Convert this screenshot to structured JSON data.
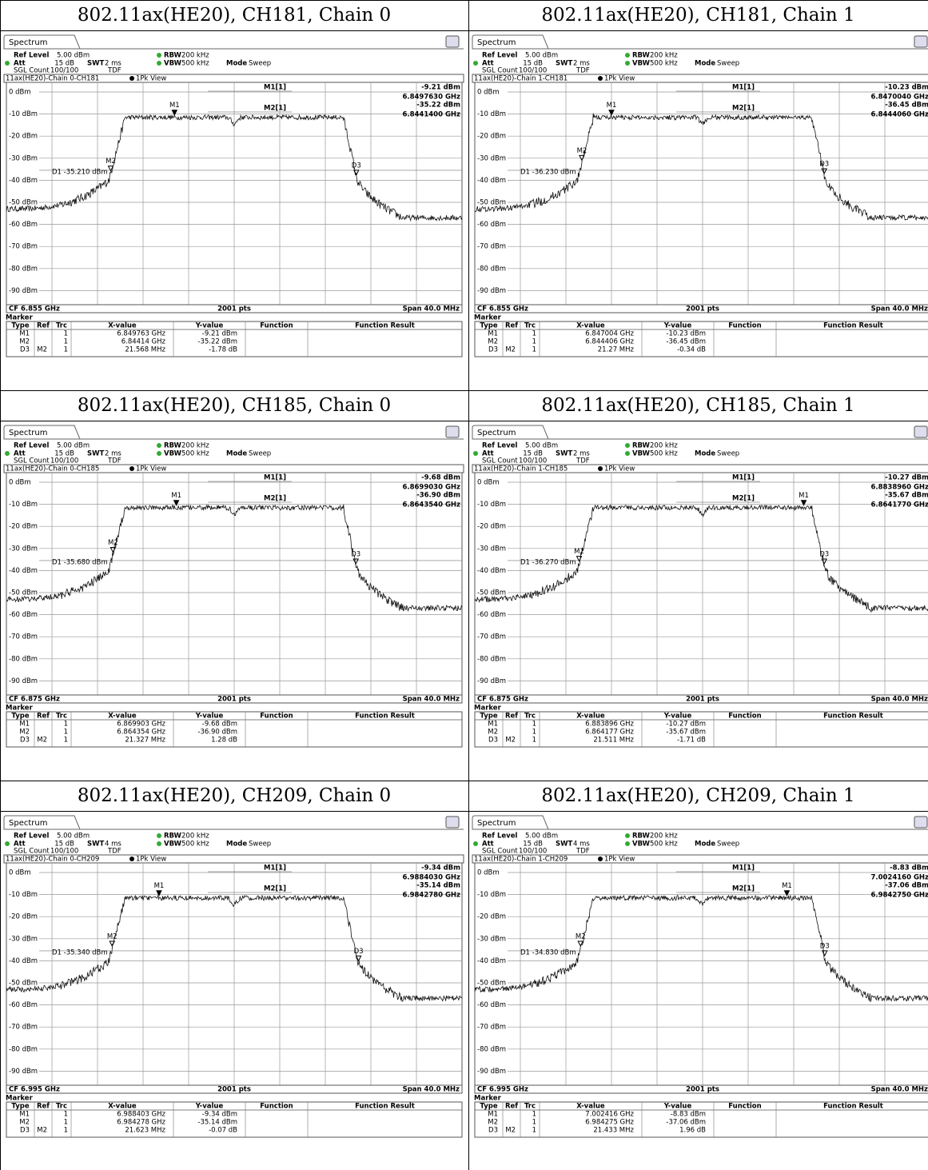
{
  "common": {
    "tab": "Spectrum",
    "ref_level_label": "Ref Level",
    "ref_level": "5.00 dBm",
    "att_label": "Att",
    "att": "15 dB",
    "swt_label": "SWT",
    "rbw_label": "RBW",
    "rbw": "200 kHz",
    "vbw_label": "VBW",
    "vbw": "500 kHz",
    "mode_label": "Mode",
    "mode": "Sweep",
    "sgl_label": "SGL Count",
    "sgl_count": "100/100",
    "tdf": "TDF",
    "view": "1Pk View",
    "m1_readout": "M1[1]",
    "m2_readout": "M2[1]",
    "pts": "2001 pts",
    "span": "Span 40.0 MHz",
    "marker_heading": "Marker",
    "table_header": [
      "Type",
      "Ref",
      "Trc",
      "X-value",
      "Y-value",
      "Function",
      "Function Result"
    ],
    "y_axis_labels": [
      "0 dBm",
      "-10 dBm",
      "-20 dBm",
      "-30 dBm",
      "-40 dBm",
      "-50 dBm",
      "-60 dBm",
      "-70 dBm",
      "-80 dBm",
      "-90 dBm"
    ]
  },
  "panels": [
    {
      "title": "802.11ax(HE20), CH181, Chain 0",
      "swt": "2 ms",
      "trace_label": "11ax(HE20)-Chain 0-CH181",
      "m1_level": "-9.21 dBm",
      "m1_freq": "6.8497630 GHz",
      "m2_level": "-35.22 dBm",
      "m2_freq": "6.8441400 GHz",
      "d1": "D1 -35.210 dBm",
      "cf": "CF 6.855 GHz",
      "rows": [
        {
          "type": "M1",
          "trc": "1",
          "x": "6.849763 GHz",
          "y": "-9.21 dBm"
        },
        {
          "type": "M2",
          "trc": "1",
          "x": "6.84414 GHz",
          "y": "-35.22 dBm"
        },
        {
          "type": "D3",
          "ref": "M2",
          "trc": "1",
          "x": "21.568 MHz",
          "y": "-1.78 dB"
        }
      ]
    },
    {
      "title": "802.11ax(HE20), CH181, Chain 1",
      "swt": "2 ms",
      "trace_label": "11ax(HE20)-Chain 1-CH181",
      "m1_level": "-10.23 dBm",
      "m1_freq": "6.8470040 GHz",
      "m2_level": "-36.45 dBm",
      "m2_freq": "6.8444060 GHz",
      "d1": "D1 -36.230 dBm",
      "cf": "CF 6.855 GHz",
      "rows": [
        {
          "type": "M1",
          "trc": "1",
          "x": "6.847004 GHz",
          "y": "-10.23 dBm"
        },
        {
          "type": "M2",
          "trc": "1",
          "x": "6.844406 GHz",
          "y": "-36.45 dBm"
        },
        {
          "type": "D3",
          "ref": "M2",
          "trc": "1",
          "x": "21.27 MHz",
          "y": "-0.34 dB"
        }
      ]
    },
    {
      "title": "802.11ax(HE20), CH185, Chain 0",
      "swt": "2 ms",
      "trace_label": "11ax(HE20)-Chain 0-CH185",
      "m1_level": "-9.68 dBm",
      "m1_freq": "6.8699030 GHz",
      "m2_level": "-36.90 dBm",
      "m2_freq": "6.8643540 GHz",
      "d1": "D1 -35.680 dBm",
      "cf": "CF 6.875 GHz",
      "rows": [
        {
          "type": "M1",
          "trc": "1",
          "x": "6.869903 GHz",
          "y": "-9.68 dBm"
        },
        {
          "type": "M2",
          "trc": "1",
          "x": "6.864354 GHz",
          "y": "-36.90 dBm"
        },
        {
          "type": "D3",
          "ref": "M2",
          "trc": "1",
          "x": "21.327 MHz",
          "y": "1.28 dB"
        }
      ]
    },
    {
      "title": "802.11ax(HE20), CH185, Chain 1",
      "swt": "2 ms",
      "trace_label": "11ax(HE20)-Chain 1-CH185",
      "m1_level": "-10.27 dBm",
      "m1_freq": "6.8838960 GHz",
      "m2_level": "-35.67 dBm",
      "m2_freq": "6.8641770 GHz",
      "d1": "D1 -36.270 dBm",
      "cf": "CF 6.875 GHz",
      "rows": [
        {
          "type": "M1",
          "trc": "1",
          "x": "6.883896 GHz",
          "y": "-10.27 dBm"
        },
        {
          "type": "M2",
          "trc": "1",
          "x": "6.864177 GHz",
          "y": "-35.67 dBm"
        },
        {
          "type": "D3",
          "ref": "M2",
          "trc": "1",
          "x": "21.511 MHz",
          "y": "-1.71 dB"
        }
      ]
    },
    {
      "title": "802.11ax(HE20), CH209, Chain 0",
      "swt": "4 ms",
      "trace_label": "11ax(HE20)-Chain 0-CH209",
      "m1_level": "-9.34 dBm",
      "m1_freq": "6.9884030 GHz",
      "m2_level": "-35.14 dBm",
      "m2_freq": "6.9842780 GHz",
      "d1": "D1 -35.340 dBm",
      "cf": "CF 6.995 GHz",
      "rows": [
        {
          "type": "M1",
          "trc": "1",
          "x": "6.988403 GHz",
          "y": "-9.34 dBm"
        },
        {
          "type": "M2",
          "trc": "1",
          "x": "6.984278 GHz",
          "y": "-35.14 dBm"
        },
        {
          "type": "D3",
          "ref": "M2",
          "trc": "1",
          "x": "21.623 MHz",
          "y": "-0.07 dB"
        }
      ]
    },
    {
      "title": "802.11ax(HE20), CH209, Chain 1",
      "swt": "4 ms",
      "trace_label": "11ax(HE20)-Chain 1-CH209",
      "m1_level": "-8.83 dBm",
      "m1_freq": "7.0024160 GHz",
      "m2_level": "-37.06 dBm",
      "m2_freq": "6.9842750 GHz",
      "d1": "D1 -34.830 dBm",
      "cf": "CF 6.995 GHz",
      "rows": [
        {
          "type": "M1",
          "trc": "1",
          "x": "7.002416 GHz",
          "y": "-8.83 dBm"
        },
        {
          "type": "M2",
          "trc": "1",
          "x": "6.984275 GHz",
          "y": "-37.06 dBm"
        },
        {
          "type": "D3",
          "ref": "M2",
          "trc": "1",
          "x": "21.433 MHz",
          "y": "1.96 dB"
        }
      ]
    }
  ]
}
